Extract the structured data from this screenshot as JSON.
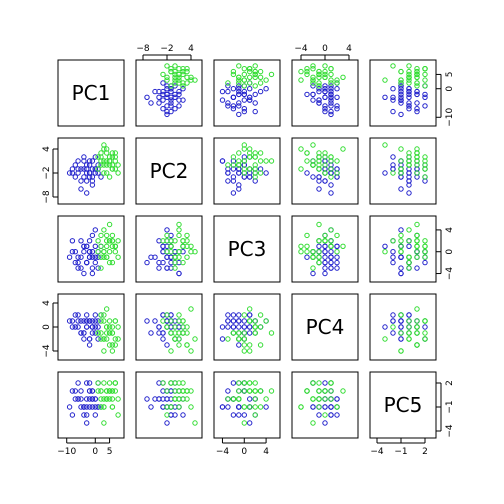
{
  "chart_data": {
    "type": "scatter",
    "variables": [
      "PC1",
      "PC2",
      "PC3",
      "PC4",
      "PC5"
    ],
    "axes": {
      "PC1": {
        "range": [
          -12,
          9
        ],
        "ticks": [
          -10,
          0,
          5
        ],
        "tick_labels": [
          "−10",
          "0",
          "5"
        ]
      },
      "PC2": {
        "range": [
          -9,
          6
        ],
        "ticks": [
          -8,
          -2,
          4
        ],
        "tick_labels": [
          "−8",
          "−2",
          "4"
        ]
      },
      "PC3": {
        "range": [
          -5,
          6
        ],
        "ticks": [
          -4,
          0,
          4
        ],
        "tick_labels": [
          "−4",
          "0",
          "4"
        ]
      },
      "PC4": {
        "range": [
          -5,
          5
        ],
        "ticks": [
          -4,
          0,
          4
        ],
        "tick_labels": [
          "−4",
          "0",
          "4"
        ]
      },
      "PC5": {
        "range": [
          -4.5,
          3
        ],
        "ticks": [
          -4,
          -1,
          2
        ],
        "tick_labels": [
          "−4",
          "−1",
          "2"
        ]
      }
    },
    "axis_label_sides": {
      "top": [
        "PC2",
        "PC4"
      ],
      "bottom": [
        "PC1",
        "PC3",
        "PC5"
      ],
      "right": [
        "PC1",
        "PC3",
        "PC5"
      ],
      "left": [
        "PC2",
        "PC4"
      ]
    },
    "marker": "open-circle",
    "grid": false,
    "series": [
      {
        "color": "#2222cc",
        "points": [
          [
            -9,
            -2,
            -1,
            1,
            -1
          ],
          [
            -6,
            1,
            -2,
            0,
            0
          ],
          [
            -5,
            -1,
            -3,
            1,
            1
          ],
          [
            -4,
            2,
            0,
            -1,
            -2
          ],
          [
            -3,
            -1,
            1,
            2,
            -1
          ],
          [
            -3,
            -4,
            -2,
            0,
            2
          ],
          [
            -2,
            0,
            -1,
            -2,
            -1
          ],
          [
            -2,
            -2,
            2,
            1,
            0
          ],
          [
            -1,
            1,
            -4,
            0,
            -1
          ],
          [
            -1,
            -3,
            0,
            -1,
            1
          ],
          [
            0,
            -1,
            -1,
            2,
            -2
          ],
          [
            0,
            2,
            1,
            0,
            0
          ],
          [
            1,
            -2,
            -3,
            1,
            -1
          ],
          [
            1,
            0,
            0,
            -2,
            2
          ],
          [
            -1,
            -5,
            -1,
            1,
            0
          ],
          [
            -4,
            -3,
            1,
            -1,
            -1
          ],
          [
            -7,
            0,
            0,
            0,
            1
          ],
          [
            -8,
            -1,
            2,
            1,
            -2
          ],
          [
            -6,
            -2,
            -3,
            2,
            0
          ],
          [
            -5,
            -6,
            -1,
            -1,
            -1
          ],
          [
            -2,
            1,
            0,
            1,
            1
          ],
          [
            -3,
            -2,
            1,
            0,
            -3
          ],
          [
            0,
            -1,
            -2,
            -1,
            0
          ],
          [
            2,
            -3,
            1,
            2,
            -1
          ],
          [
            -1,
            -1,
            3,
            0,
            1
          ],
          [
            -4,
            1,
            -4,
            -2,
            -1
          ],
          [
            -6,
            -1,
            -1,
            1,
            2
          ],
          [
            -5,
            -4,
            2,
            -1,
            0
          ],
          [
            -3,
            0,
            -2,
            1,
            -2
          ],
          [
            -2,
            -2,
            -1,
            -3,
            1
          ],
          [
            -1,
            -4,
            -3,
            0,
            0
          ],
          [
            0,
            -2,
            4,
            1,
            -1
          ],
          [
            -8,
            -2,
            0,
            0,
            1
          ],
          [
            -7,
            -3,
            -2,
            2,
            0
          ],
          [
            -4,
            -1,
            1,
            1,
            -1
          ],
          [
            -2,
            -3,
            0,
            -2,
            2
          ],
          [
            1,
            -1,
            -1,
            0,
            -1
          ],
          [
            -3,
            -7,
            -2,
            1,
            0
          ]
        ]
      },
      {
        "color": "#33dd33",
        "points": [
          [
            2,
            2,
            1,
            1,
            1
          ],
          [
            3,
            0,
            -1,
            -2,
            2
          ],
          [
            4,
            3,
            2,
            0,
            0
          ],
          [
            5,
            1,
            0,
            -3,
            1
          ],
          [
            6,
            -1,
            2,
            -1,
            -1
          ],
          [
            7,
            2,
            1,
            1,
            2
          ],
          [
            8,
            0,
            -1,
            -2,
            0
          ],
          [
            4,
            -2,
            3,
            0,
            1
          ],
          [
            3,
            4,
            0,
            -4,
            -1
          ],
          [
            5,
            -3,
            2,
            1,
            2
          ],
          [
            6,
            2,
            -2,
            -1,
            0
          ],
          [
            7,
            3,
            1,
            -3,
            1
          ],
          [
            2,
            1,
            3,
            2,
            -1
          ],
          [
            1,
            -1,
            0,
            -1,
            2
          ],
          [
            4,
            0,
            -1,
            -2,
            0
          ],
          [
            5,
            2,
            2,
            0,
            1
          ],
          [
            6,
            -1,
            1,
            -4,
            -1
          ],
          [
            3,
            1,
            4,
            1,
            0
          ],
          [
            2,
            3,
            -1,
            -1,
            1
          ],
          [
            7,
            1,
            0,
            -2,
            2
          ],
          [
            8,
            -2,
            2,
            0,
            -2
          ],
          [
            4,
            4,
            1,
            3,
            1
          ],
          [
            5,
            0,
            -2,
            -1,
            0
          ],
          [
            6,
            3,
            3,
            -3,
            1
          ],
          [
            3,
            -2,
            0,
            2,
            -1
          ],
          [
            1,
            2,
            2,
            -1,
            1
          ],
          [
            2,
            0,
            -3,
            -2,
            0
          ],
          [
            7,
            -1,
            1,
            1,
            2
          ],
          [
            5,
            1,
            5,
            -1,
            1
          ],
          [
            3,
            5,
            0,
            -2,
            -3
          ],
          [
            6,
            0,
            2,
            0,
            1
          ],
          [
            4,
            1,
            -1,
            -1,
            0
          ]
        ]
      }
    ]
  }
}
